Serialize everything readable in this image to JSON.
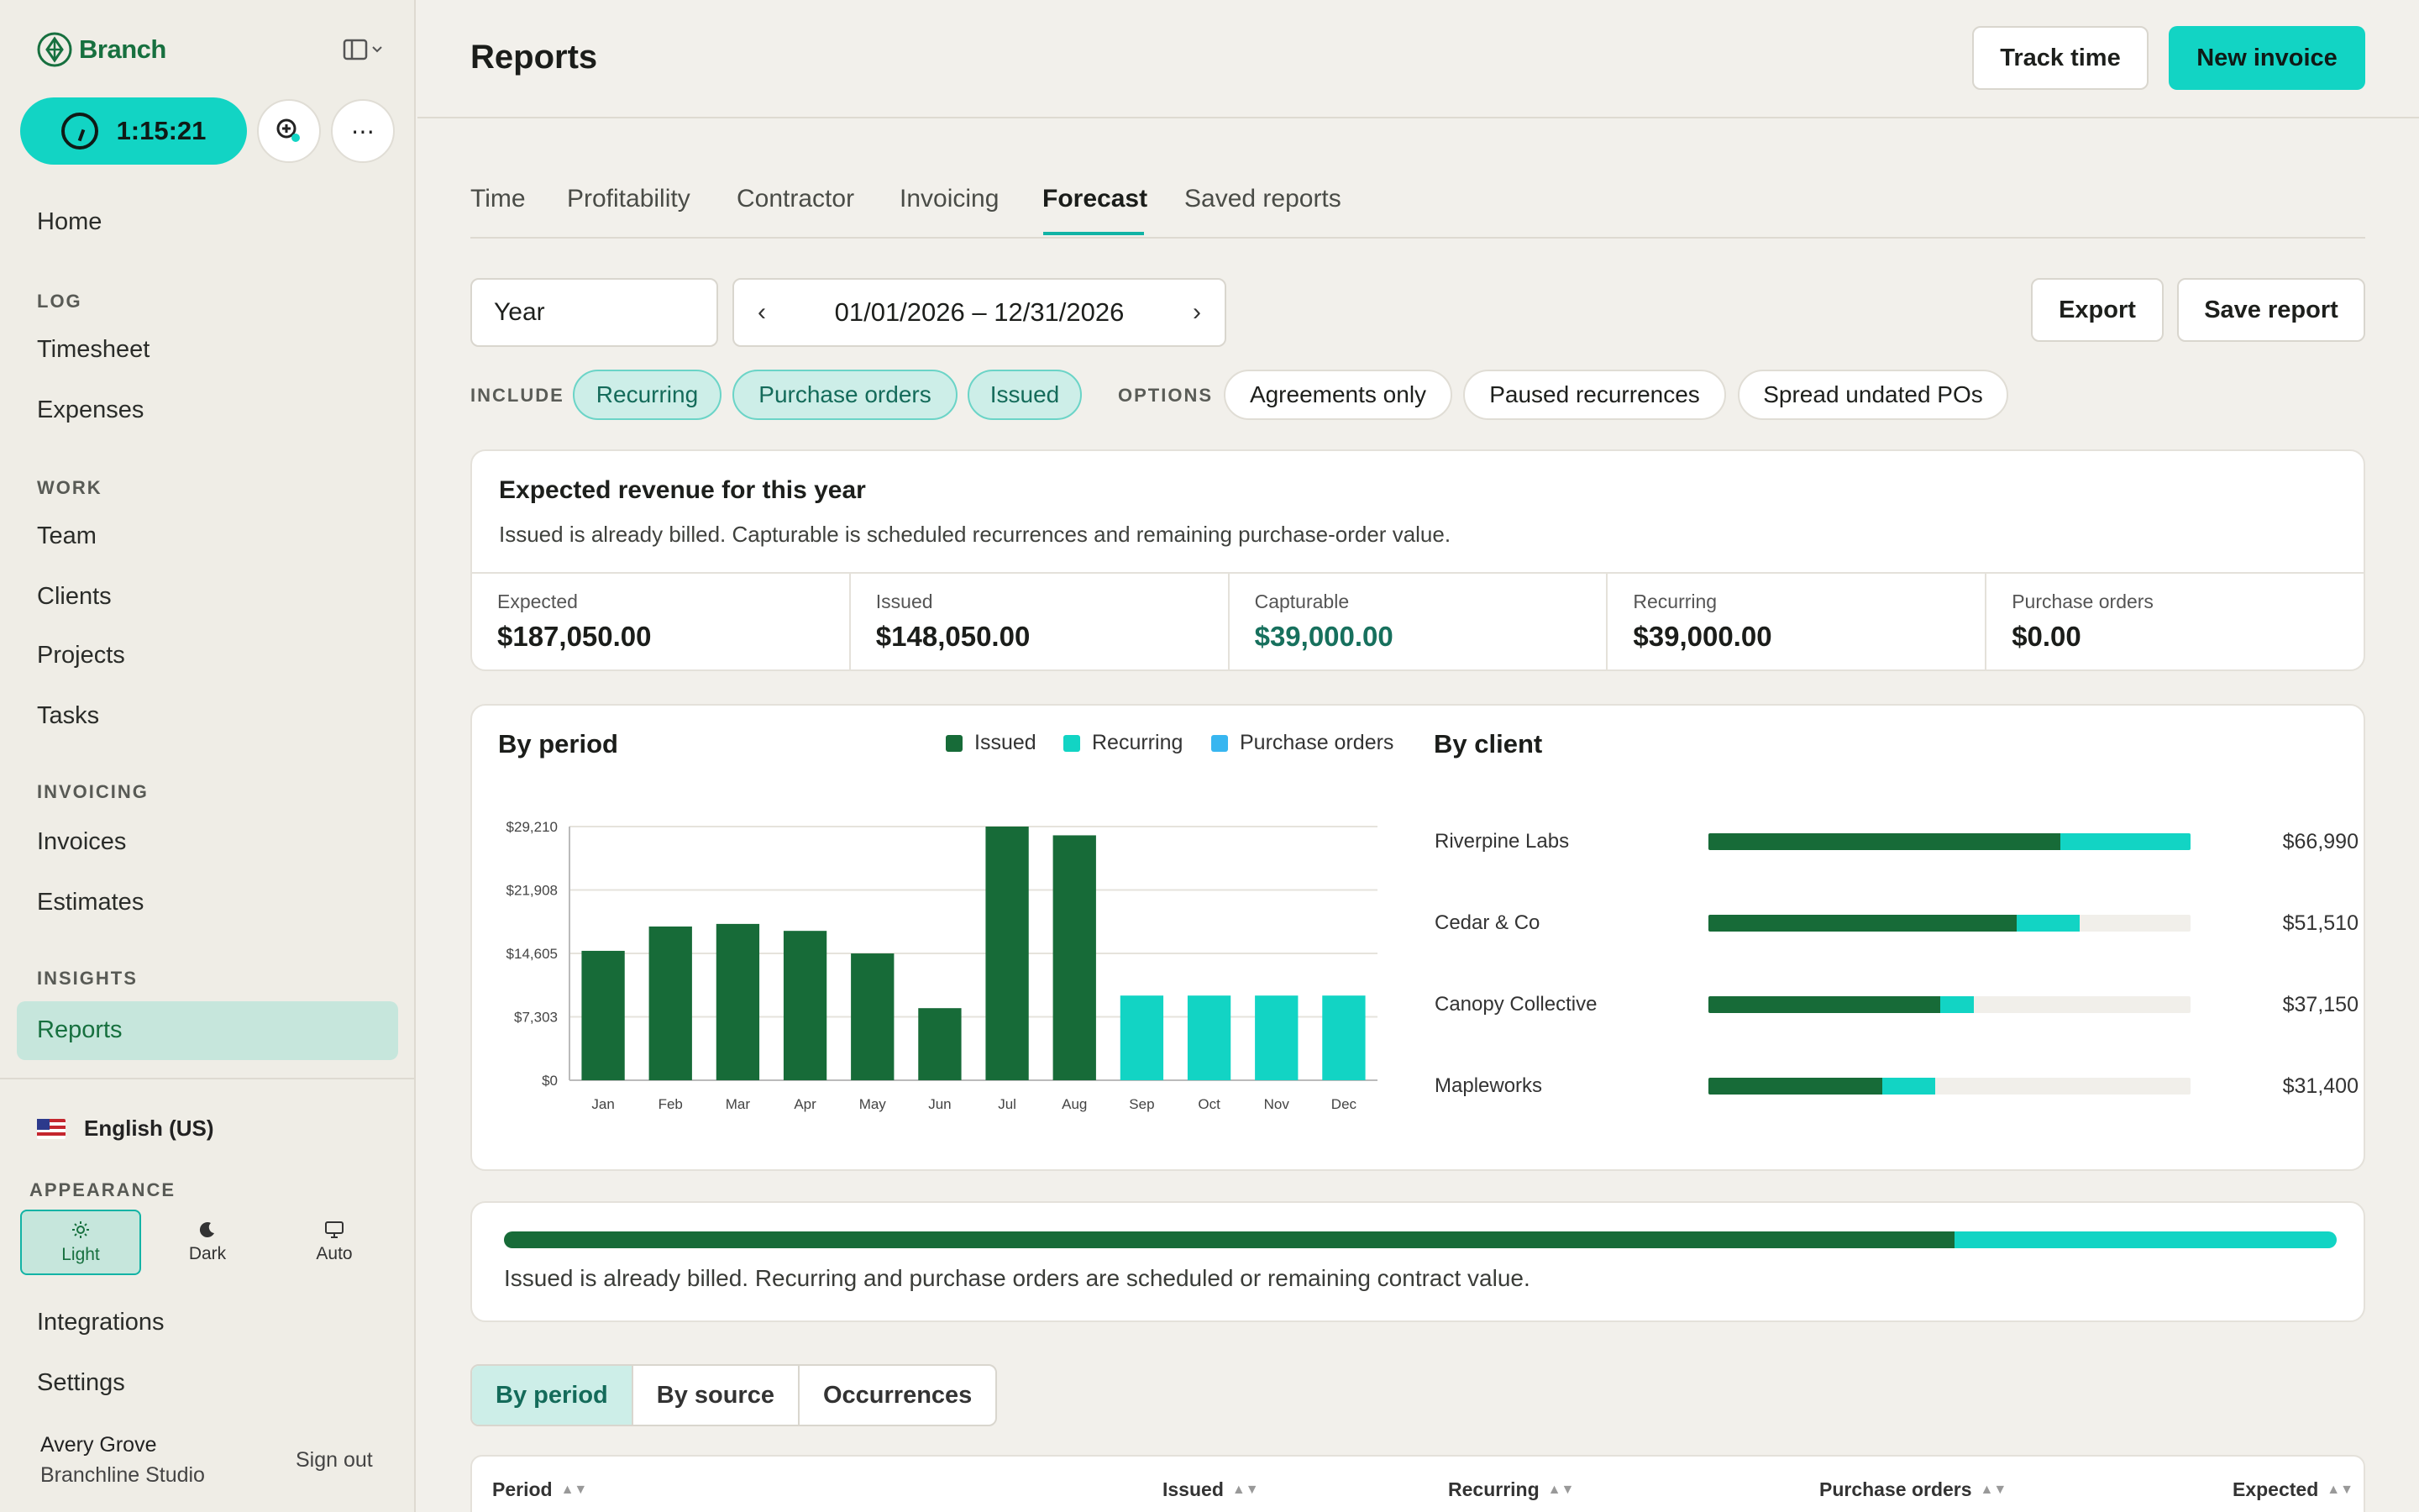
{
  "app": {
    "brand": "Branch",
    "timer": "1:15:21"
  },
  "sidebar": {
    "home": "Home",
    "sections": {
      "log": "LOG",
      "work": "WORK",
      "invoicing": "INVOICING",
      "insights": "INSIGHTS"
    },
    "log": [
      "Timesheet",
      "Expenses"
    ],
    "work": [
      "Team",
      "Clients",
      "Projects",
      "Tasks"
    ],
    "invoicing": [
      "Invoices",
      "Estimates"
    ],
    "insights": [
      "Reports"
    ],
    "language": "English (US)",
    "appearance_label": "APPEARANCE",
    "themes": [
      {
        "label": "Light",
        "icon": "sun-icon"
      },
      {
        "label": "Dark",
        "icon": "moon-icon"
      },
      {
        "label": "Auto",
        "icon": "monitor-icon"
      }
    ],
    "bottom": [
      "Integrations",
      "Settings"
    ],
    "user": {
      "name": "Avery Grove",
      "org": "Branchline Studio",
      "signout": "Sign out"
    }
  },
  "header": {
    "title": "Reports",
    "track_time": "Track time",
    "new_invoice": "New invoice"
  },
  "tabs": [
    "Time",
    "Profitability",
    "Contractor",
    "Invoicing",
    "Forecast",
    "Saved reports"
  ],
  "active_tab": "Forecast",
  "filters": {
    "period": "Year",
    "date_range": "01/01/2026 – 12/31/2026",
    "export": "Export",
    "save_report": "Save report",
    "include_label": "INCLUDE",
    "include": [
      "Recurring",
      "Purchase orders",
      "Issued"
    ],
    "options_label": "OPTIONS",
    "options": [
      "Agreements only",
      "Paused recurrences",
      "Spread undated POs"
    ]
  },
  "summary": {
    "title": "Expected revenue for this year",
    "subtitle": "Issued is already billed. Capturable is scheduled recurrences and remaining purchase-order value.",
    "stats": [
      {
        "label": "Expected",
        "value": "$187,050.00"
      },
      {
        "label": "Issued",
        "value": "$148,050.00"
      },
      {
        "label": "Capturable",
        "value": "$39,000.00"
      },
      {
        "label": "Recurring",
        "value": "$39,000.00"
      },
      {
        "label": "Purchase orders",
        "value": "$0.00"
      }
    ]
  },
  "by_period": {
    "title": "By period"
  },
  "by_client": {
    "title": "By client",
    "clients": [
      {
        "name": "Riverpine Labs",
        "value": "$66,990",
        "issued": 0.73,
        "recurring": 0.27
      },
      {
        "name": "Cedar & Co",
        "value": "$51,510",
        "issued": 0.64,
        "recurring": 0.13
      },
      {
        "name": "Canopy Collective",
        "value": "$37,150",
        "issued": 0.48,
        "recurring": 0.07
      },
      {
        "name": "Mapleworks",
        "value": "$31,400",
        "issued": 0.36,
        "recurring": 0.11
      }
    ]
  },
  "colors": {
    "issued": "#176b38",
    "recurring": "#12d4c4",
    "purchase_orders": "#38b6f0",
    "accent": "#12d4c4"
  },
  "chart_data": {
    "type": "bar",
    "categories": [
      "Jan",
      "Feb",
      "Mar",
      "Apr",
      "May",
      "Jun",
      "Jul",
      "Aug",
      "Sep",
      "Oct",
      "Nov",
      "Dec"
    ],
    "series": [
      {
        "name": "Issued",
        "values": [
          14900,
          17700,
          18000,
          17200,
          14600,
          8300,
          29210,
          28200,
          0,
          0,
          0,
          0
        ]
      },
      {
        "name": "Recurring",
        "values": [
          0,
          0,
          0,
          0,
          0,
          0,
          0,
          0,
          9750,
          9750,
          9750,
          9750
        ]
      },
      {
        "name": "Purchase orders",
        "values": [
          0,
          0,
          0,
          0,
          0,
          0,
          0,
          0,
          0,
          0,
          0,
          0
        ]
      }
    ],
    "yticks": [
      "$0",
      "$7,303",
      "$14,605",
      "$21,908",
      "$29,210"
    ],
    "ylim": [
      0,
      29210
    ],
    "stacked": true,
    "grid": true,
    "legend": "top"
  },
  "progress": {
    "issued_fraction": 0.7915,
    "recurring_fraction": 0.2085,
    "note": "Issued is already billed. Recurring and purchase orders are scheduled or remaining contract value."
  },
  "views": [
    "By period",
    "By source",
    "Occurrences"
  ],
  "active_view": "By period",
  "table": {
    "columns": [
      "Period",
      "Issued",
      "Recurring",
      "Purchase orders",
      "Expected"
    ]
  }
}
